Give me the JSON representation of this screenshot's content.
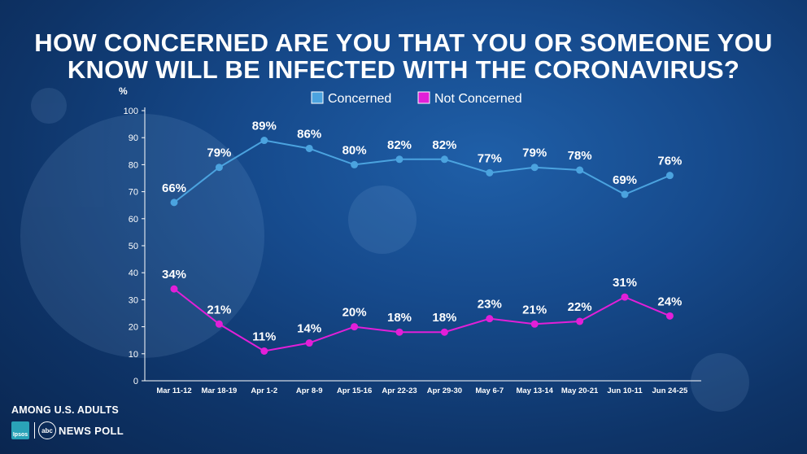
{
  "title_lines": [
    "HOW CONCERNED ARE YOU THAT YOU OR SOMEONE YOU",
    "KNOW WILL BE INFECTED WITH THE CORONAVIRUS?"
  ],
  "footer": {
    "population": "AMONG U.S. ADULTS",
    "ipsos_logo_text": "Ipsos",
    "abc_logo_text": "abc",
    "poll_label": "NEWS POLL"
  },
  "colors": {
    "concerned": "#4ba3df",
    "not_concerned": "#e21fd8",
    "axis": "#ffffff"
  },
  "chart_data": {
    "type": "line",
    "title": "HOW CONCERNED ARE YOU THAT YOU OR SOMEONE YOU KNOW WILL BE INFECTED WITH THE CORONAVIRUS?",
    "ylabel": "%",
    "xlabel": "",
    "ylim": [
      0,
      100
    ],
    "yticks": [
      0,
      10,
      20,
      30,
      40,
      50,
      60,
      70,
      80,
      90,
      100
    ],
    "grid": false,
    "legend_position": "top-center",
    "categories": [
      "Mar 11-12",
      "Mar 18-19",
      "Apr 1-2",
      "Apr 8-9",
      "Apr 15-16",
      "Apr 22-23",
      "Apr 29-30",
      "May 6-7",
      "May 13-14",
      "May 20-21",
      "Jun 10-11",
      "Jun 24-25"
    ],
    "series": [
      {
        "name": "Concerned",
        "values": [
          66,
          79,
          89,
          86,
          80,
          82,
          82,
          77,
          79,
          78,
          69,
          76
        ],
        "labels": [
          "66%",
          "79%",
          "89%",
          "86%",
          "80%",
          "82%",
          "82%",
          "77%",
          "79%",
          "78%",
          "69%",
          "76%"
        ]
      },
      {
        "name": "Not Concerned",
        "values": [
          34,
          21,
          11,
          14,
          20,
          18,
          18,
          23,
          21,
          22,
          31,
          24
        ],
        "labels": [
          "34%",
          "21%",
          "11%",
          "14%",
          "20%",
          "18%",
          "18%",
          "23%",
          "21%",
          "22%",
          "31%",
          "24%"
        ]
      }
    ]
  }
}
